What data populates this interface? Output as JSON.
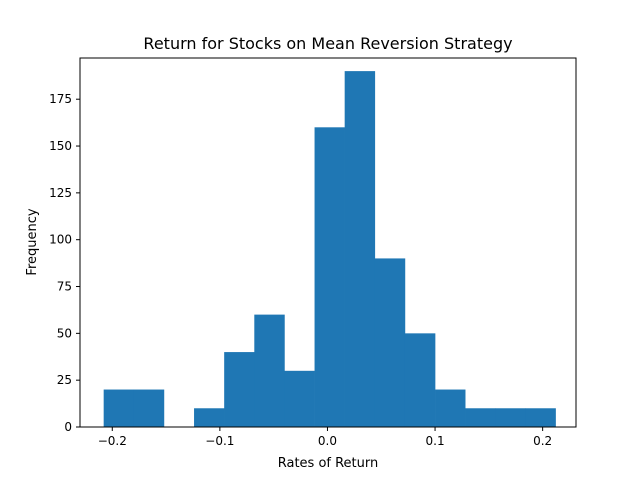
{
  "chart_data": {
    "type": "bar",
    "title": "Return for Stocks on Mean Reversion Strategy",
    "xlabel": "Rates of Return",
    "ylabel": "Frequency",
    "xlim": [
      -0.23,
      0.231
    ],
    "ylim": [
      0,
      197
    ],
    "grid": false,
    "bar_color": "#1f77b4",
    "bin_edges": [
      -0.208,
      -0.18,
      -0.152,
      -0.124,
      -0.096,
      -0.068,
      -0.04,
      -0.012,
      0.016,
      0.044,
      0.072,
      0.1,
      0.128,
      0.156,
      0.184,
      0.212
    ],
    "values": [
      20,
      20,
      0,
      10,
      40,
      60,
      30,
      160,
      190,
      90,
      50,
      20,
      10,
      10,
      10
    ],
    "x_ticks": [
      {
        "value": -0.2,
        "label": "−0.2"
      },
      {
        "value": -0.1,
        "label": "−0.1"
      },
      {
        "value": 0.0,
        "label": "0.0"
      },
      {
        "value": 0.1,
        "label": "0.1"
      },
      {
        "value": 0.2,
        "label": "0.2"
      }
    ],
    "y_ticks": [
      {
        "value": 0,
        "label": "0"
      },
      {
        "value": 25,
        "label": "25"
      },
      {
        "value": 50,
        "label": "50"
      },
      {
        "value": 75,
        "label": "75"
      },
      {
        "value": 100,
        "label": "100"
      },
      {
        "value": 125,
        "label": "125"
      },
      {
        "value": 150,
        "label": "150"
      },
      {
        "value": 175,
        "label": "175"
      }
    ]
  }
}
